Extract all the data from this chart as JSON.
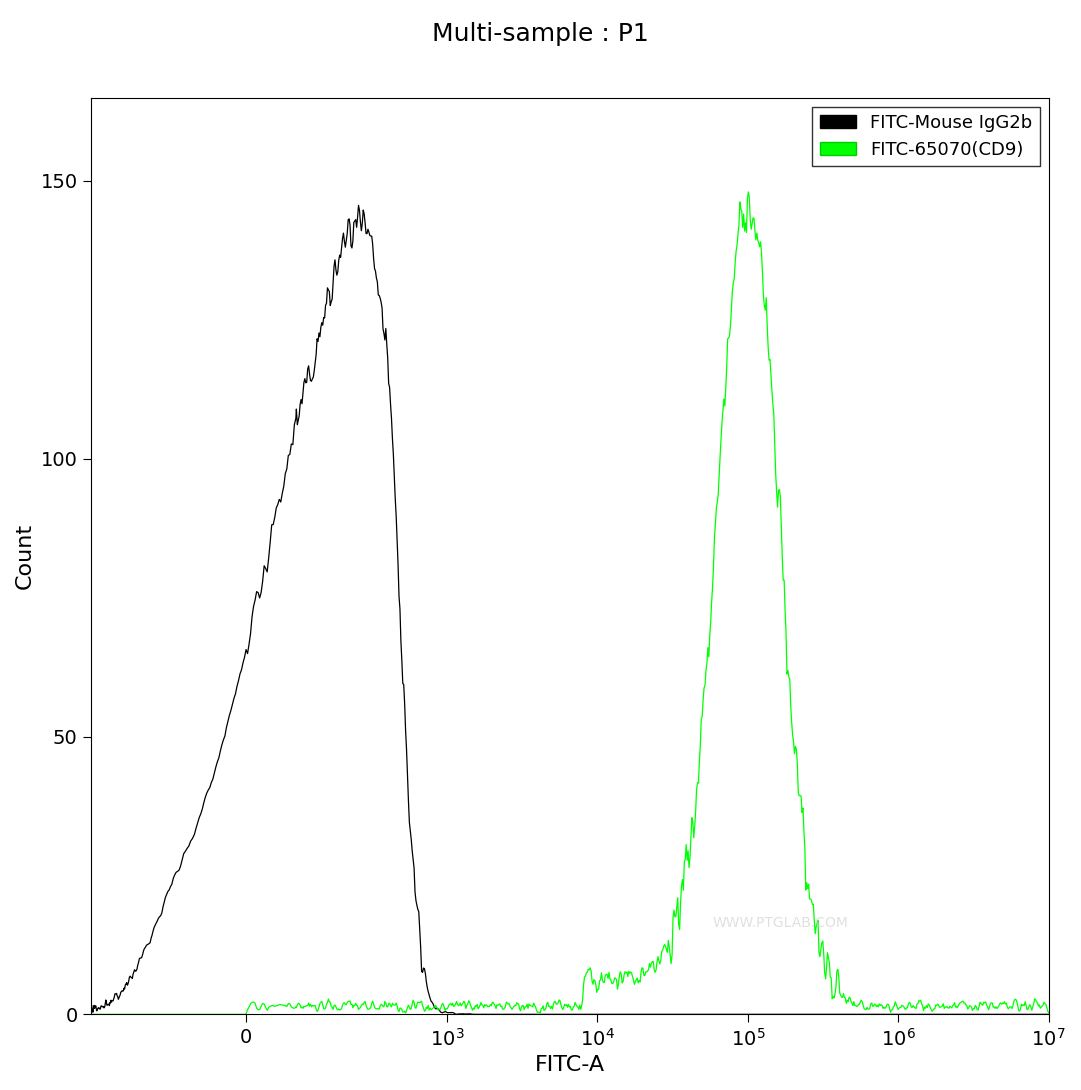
{
  "title": "Multi-sample : P1",
  "xlabel": "FITC-A",
  "ylabel": "Count",
  "background_color": "#ffffff",
  "plot_bg_color": "#ffffff",
  "title_fontsize": 18,
  "axis_label_fontsize": 16,
  "tick_label_fontsize": 14,
  "legend_labels": [
    "FITC-Mouse IgG2b",
    "FITC-65070(CD9)"
  ],
  "legend_colors": [
    "#000000",
    "#00ff00"
  ],
  "ylim": [
    0,
    165
  ],
  "yticks": [
    0,
    50,
    100,
    150
  ],
  "watermark": "WWW.PTGLAB.COM",
  "xlim_left": -500,
  "xlim_right": 10000000.0,
  "linthresh": 100,
  "linscale": 0.3
}
